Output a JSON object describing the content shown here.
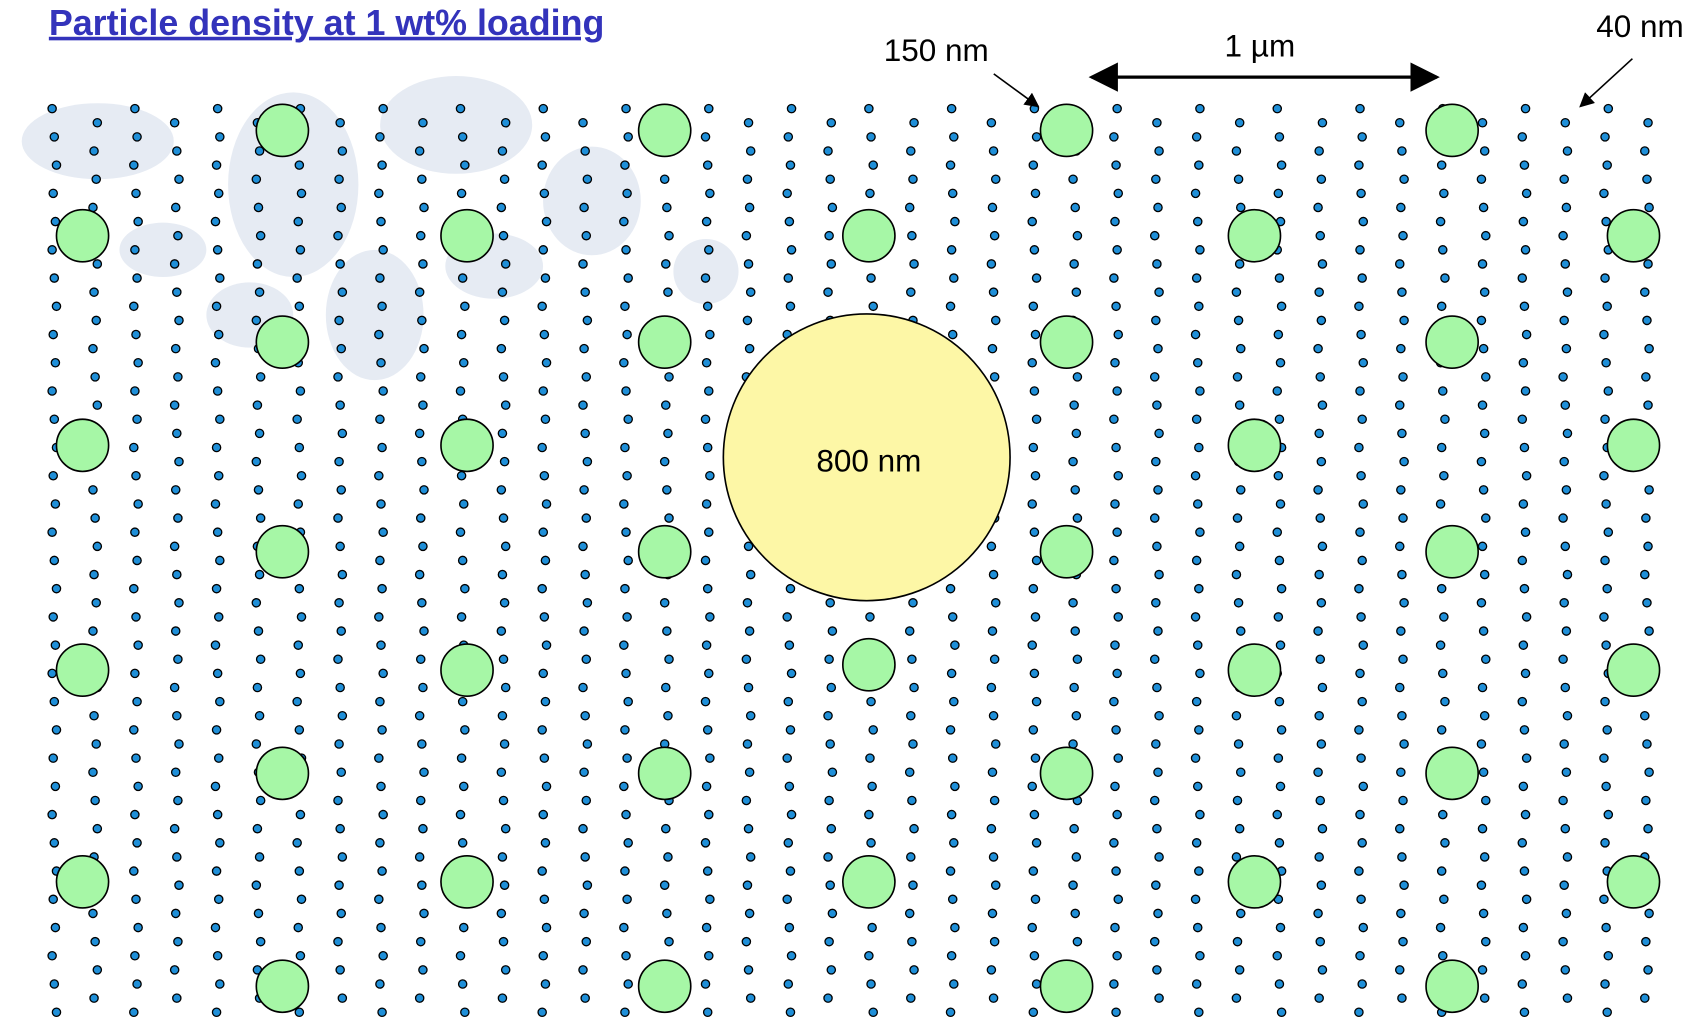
{
  "title": "Particle density at 1 wt% loading",
  "labels": {
    "large_particle": "150 nm",
    "scale_bar": "1 µm",
    "small_particle": "40 nm",
    "big_particle": "800 nm"
  }
}
